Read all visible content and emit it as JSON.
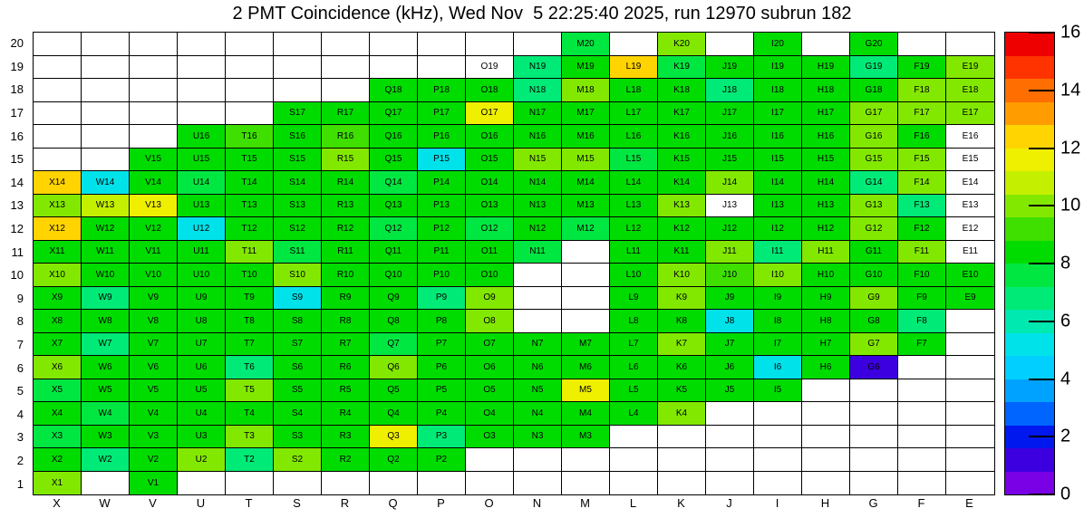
{
  "title": "2 PMT Coincidence (kHz), Wed Nov  5 22:25:40 2025, run 12970 subrun 182",
  "chart_data": {
    "type": "heatmap",
    "title": "2 PMT Coincidence (kHz), Wed Nov  5 22:25:40 2025, run 12970 subrun 182",
    "units": "kHz",
    "x_labels": [
      "X",
      "W",
      "V",
      "U",
      "T",
      "S",
      "R",
      "Q",
      "P",
      "O",
      "N",
      "M",
      "L",
      "K",
      "J",
      "I",
      "H",
      "G",
      "F",
      "E"
    ],
    "y_labels": [
      20,
      19,
      18,
      17,
      16,
      15,
      14,
      13,
      12,
      11,
      10,
      9,
      8,
      7,
      6,
      5,
      4,
      3,
      2,
      1
    ],
    "scale_min": 0,
    "scale_max": 16,
    "colorbar_ticks": [
      16,
      14,
      12,
      10,
      8,
      6,
      4,
      2,
      0
    ],
    "palette": [
      "#7A00E6",
      "#3C00E0",
      "#0018EE",
      "#0064FF",
      "#00A2FF",
      "#00CFFF",
      "#00E2EA",
      "#00E9B0",
      "#00EA77",
      "#00E742",
      "#00DC00",
      "#3FDF00",
      "#83E800",
      "#C4F000",
      "#EFEF00",
      "#FFD400",
      "#FF9D00",
      "#FF6E00",
      "#FF3300",
      "#EE0000"
    ],
    "labeled_empty": [
      "O19",
      "J13",
      "E16",
      "E15",
      "E14",
      "E13",
      "E12",
      "E11"
    ],
    "cells": {
      "M20": 7.6,
      "K20": 10.0,
      "I20": 8.4,
      "G20": 8.4,
      "N19": 6.6,
      "M19": 8.4,
      "L19": 12.4,
      "K19": 7.6,
      "J19": 8.4,
      "I19": 8.4,
      "H19": 8.4,
      "G19": 6.6,
      "F19": 8.4,
      "E19": 10.0,
      "Q18": 8.4,
      "P18": 8.4,
      "O18": 8.4,
      "N18": 6.6,
      "M18": 10.0,
      "L18": 8.4,
      "K18": 8.4,
      "J18": 6.6,
      "I18": 8.4,
      "H18": 8.4,
      "G18": 8.4,
      "F18": 10.0,
      "E18": 10.0,
      "S17": 8.4,
      "R17": 8.4,
      "Q17": 8.4,
      "P17": 8.4,
      "O17": 11.6,
      "N17": 8.4,
      "M17": 8.4,
      "L17": 8.4,
      "K17": 8.4,
      "J17": 8.4,
      "I17": 8.4,
      "H17": 8.4,
      "G17": 10.0,
      "F17": 10.0,
      "E17": 10.0,
      "U16": 8.4,
      "T16": 9.2,
      "S16": 8.4,
      "R16": 9.2,
      "Q16": 8.4,
      "P16": 8.4,
      "O16": 8.4,
      "N16": 8.4,
      "M16": 8.4,
      "L16": 8.4,
      "K16": 8.4,
      "J16": 8.4,
      "I16": 8.4,
      "H16": 8.4,
      "G16": 10.0,
      "F16": 8.4,
      "V15": 8.4,
      "U15": 8.4,
      "T15": 8.4,
      "S15": 8.4,
      "R15": 10.0,
      "Q15": 8.4,
      "P15": 5.2,
      "O15": 8.4,
      "N15": 10.0,
      "M15": 10.0,
      "L15": 7.6,
      "K15": 8.4,
      "J15": 8.4,
      "I15": 8.4,
      "H15": 8.4,
      "G15": 10.0,
      "F15": 10.0,
      "X14": 12.4,
      "W14": 5.4,
      "V14": 8.4,
      "U14": 7.6,
      "T14": 8.4,
      "S14": 8.4,
      "R14": 8.4,
      "Q14": 7.6,
      "P14": 8.4,
      "O14": 8.4,
      "N14": 8.4,
      "M14": 8.4,
      "L14": 8.4,
      "K14": 8.4,
      "J14": 10.0,
      "I14": 8.4,
      "H14": 8.4,
      "G14": 6.6,
      "F14": 10.0,
      "X13": 10.0,
      "W13": 10.8,
      "V13": 11.6,
      "U13": 8.4,
      "T13": 8.4,
      "S13": 8.4,
      "R13": 8.4,
      "Q13": 8.4,
      "P13": 8.4,
      "O13": 8.4,
      "N13": 8.4,
      "M13": 8.4,
      "L13": 8.4,
      "K13": 10.0,
      "I13": 8.4,
      "H13": 8.4,
      "G13": 10.0,
      "F13": 6.6,
      "X12": 12.4,
      "W12": 8.4,
      "V12": 8.4,
      "U12": 5.2,
      "T12": 8.4,
      "S12": 8.4,
      "R12": 8.4,
      "Q12": 7.6,
      "P12": 8.4,
      "O12": 7.6,
      "N12": 8.4,
      "M12": 7.6,
      "L12": 8.4,
      "K12": 8.4,
      "J12": 8.4,
      "I12": 8.4,
      "H12": 8.4,
      "G12": 10.0,
      "F12": 8.4,
      "X11": 8.4,
      "W11": 8.4,
      "V11": 8.4,
      "U11": 8.4,
      "T11": 10.0,
      "S11": 7.6,
      "R11": 8.4,
      "Q11": 8.4,
      "P11": 8.4,
      "O11": 8.4,
      "N11": 7.6,
      "L11": 8.4,
      "K11": 8.4,
      "J11": 10.0,
      "I11": 6.6,
      "H11": 10.0,
      "G11": 8.4,
      "F11": 10.0,
      "X10": 10.0,
      "W10": 8.4,
      "V10": 8.4,
      "U10": 8.4,
      "T10": 8.4,
      "S10": 10.0,
      "R10": 8.4,
      "Q10": 8.4,
      "P10": 8.4,
      "O10": 8.4,
      "L10": 8.4,
      "K10": 10.0,
      "J10": 9.2,
      "I10": 10.0,
      "H10": 8.4,
      "G10": 8.4,
      "F10": 8.4,
      "E10": 8.4,
      "X9": 8.4,
      "W9": 6.6,
      "V9": 8.4,
      "U9": 8.4,
      "T9": 8.4,
      "S9": 5.2,
      "R9": 8.4,
      "Q9": 8.4,
      "P9": 6.6,
      "O9": 10.0,
      "L9": 8.4,
      "K9": 10.0,
      "J9": 8.4,
      "I9": 8.4,
      "H9": 8.4,
      "G9": 10.0,
      "F9": 8.4,
      "E9": 8.4,
      "X8": 8.4,
      "W8": 8.4,
      "V8": 8.4,
      "U8": 8.4,
      "T8": 8.4,
      "S8": 8.4,
      "R8": 8.4,
      "Q8": 8.4,
      "P8": 8.4,
      "O8": 10.0,
      "L8": 8.4,
      "K8": 8.4,
      "J8": 5.2,
      "I8": 8.4,
      "H8": 8.4,
      "G8": 8.4,
      "F8": 6.6,
      "X7": 8.4,
      "W7": 6.6,
      "V7": 8.4,
      "U7": 8.4,
      "T7": 8.4,
      "S7": 8.4,
      "R7": 8.4,
      "Q7": 7.6,
      "P7": 8.4,
      "O7": 8.4,
      "N7": 8.4,
      "M7": 8.4,
      "L7": 8.4,
      "K7": 10.0,
      "J7": 8.4,
      "I7": 8.4,
      "H7": 8.4,
      "G7": 10.0,
      "F7": 8.4,
      "X6": 10.0,
      "W6": 8.4,
      "V6": 8.4,
      "U6": 8.4,
      "T6": 6.6,
      "S6": 8.4,
      "R6": 8.4,
      "Q6": 10.0,
      "P6": 8.4,
      "O6": 8.4,
      "N6": 8.4,
      "M6": 8.4,
      "L6": 8.4,
      "K6": 8.4,
      "J6": 8.4,
      "I6": 5.2,
      "H6": 8.4,
      "G6": 1.2,
      "X5": 7.6,
      "W5": 8.4,
      "V5": 8.4,
      "U5": 8.4,
      "T5": 10.0,
      "S5": 8.4,
      "R5": 8.4,
      "Q5": 8.4,
      "P5": 8.4,
      "O5": 8.4,
      "N5": 8.4,
      "M5": 11.6,
      "L5": 8.4,
      "K5": 8.4,
      "J5": 8.4,
      "I5": 8.4,
      "X4": 8.4,
      "W4": 7.6,
      "V4": 8.4,
      "U4": 8.4,
      "T4": 8.4,
      "S4": 8.4,
      "R4": 8.4,
      "Q4": 8.4,
      "P4": 8.4,
      "O4": 8.4,
      "N4": 8.4,
      "M4": 8.4,
      "L4": 8.4,
      "K4": 10.0,
      "X3": 7.6,
      "W3": 8.4,
      "V3": 8.4,
      "U3": 8.4,
      "T3": 10.0,
      "S3": 8.4,
      "R3": 8.4,
      "Q3": 11.6,
      "P3": 6.6,
      "O3": 8.4,
      "N3": 8.4,
      "M3": 8.4,
      "X2": 8.4,
      "W2": 6.6,
      "V2": 8.4,
      "U2": 10.0,
      "T2": 6.6,
      "S2": 10.0,
      "R2": 8.4,
      "Q2": 8.4,
      "P2": 8.4,
      "X1": 10.0,
      "V1": 8.4
    }
  }
}
